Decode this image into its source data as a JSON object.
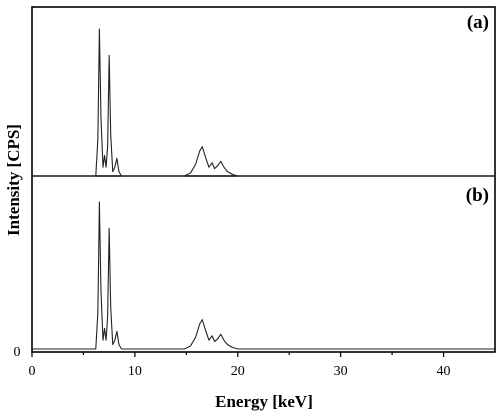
{
  "chart_data": {
    "type": "line",
    "xlabel": "Energy [keV]",
    "ylabel": "Intensity [CPS]",
    "xlim": [
      0,
      45
    ],
    "xticks": [
      0,
      10,
      20,
      30,
      40
    ],
    "ytick_labels": [
      "0"
    ],
    "grid": false,
    "legend": "none",
    "panels": [
      {
        "label": "(a)",
        "ylim": [
          0,
          100
        ],
        "series": [
          {
            "x": [
              5.5,
              6.2,
              6.4,
              6.55,
              6.7,
              6.9,
              7.05,
              7.2,
              7.35,
              7.5,
              7.65,
              7.85,
              8.05,
              8.25,
              8.45,
              8.7,
              14.8,
              15.4,
              15.9,
              16.3,
              16.55,
              16.9,
              17.2,
              17.5,
              17.75,
              18.05,
              18.35,
              18.65,
              19.0,
              19.5,
              20.0
            ],
            "y": [
              0,
              0,
              25,
              100,
              40,
              6,
              14,
              6,
              20,
              82,
              28,
              3,
              6,
              12,
              3,
              0,
              0,
              2,
              8,
              17,
              20,
              12,
              6,
              9,
              5,
              7,
              10,
              6,
              3,
              1,
              0
            ]
          }
        ]
      },
      {
        "label": "(b)",
        "ylim": [
          0,
          100
        ],
        "series": [
          {
            "x": [
              5.5,
              6.2,
              6.4,
              6.55,
              6.7,
              6.9,
              7.05,
              7.2,
              7.35,
              7.5,
              7.65,
              7.85,
              8.05,
              8.25,
              8.45,
              8.7,
              14.8,
              15.4,
              15.9,
              16.3,
              16.55,
              16.9,
              17.2,
              17.5,
              17.75,
              18.05,
              18.35,
              18.65,
              19.0,
              19.5,
              20.0
            ],
            "y": [
              0,
              0,
              25,
              100,
              40,
              6,
              14,
              6,
              22,
              82,
              28,
              3,
              6,
              12,
              3,
              0,
              0,
              2,
              8,
              17,
              20,
              12,
              6,
              9,
              5,
              7,
              10,
              6,
              3,
              1,
              0
            ]
          }
        ]
      }
    ]
  }
}
